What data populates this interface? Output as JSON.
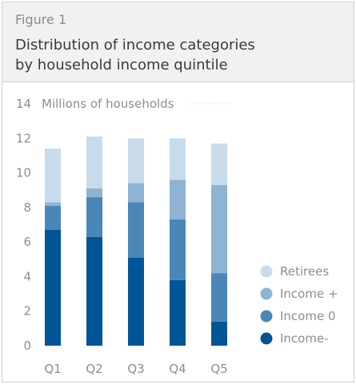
{
  "figure_label": "Figure 1",
  "title_line1": "Distribution of income categories",
  "title_line2": "by household income quintile",
  "chart_data": {
    "type": "bar",
    "stacked": true,
    "ylabel": "Millions of households",
    "ylim": [
      0,
      14
    ],
    "yticks": [
      0,
      2,
      4,
      6,
      8,
      10,
      12,
      14
    ],
    "categories": [
      "Q1",
      "Q2",
      "Q3",
      "Q4",
      "Q5"
    ],
    "series": [
      {
        "name": "Income-",
        "color": "#005596",
        "values": [
          6.7,
          6.3,
          5.1,
          3.8,
          1.4
        ]
      },
      {
        "name": "Income 0",
        "color": "#4a87b8",
        "values": [
          1.4,
          2.3,
          3.2,
          3.5,
          2.8
        ]
      },
      {
        "name": "Income +",
        "color": "#8eb3d3",
        "values": [
          0.2,
          0.5,
          1.1,
          2.3,
          5.1
        ]
      },
      {
        "name": "Retirees",
        "color": "#c8dbea",
        "values": [
          3.1,
          3.0,
          2.6,
          2.4,
          2.4
        ]
      }
    ],
    "legend_position": "right",
    "legend_order": [
      "Retirees",
      "Income +",
      "Income 0",
      "Income-"
    ]
  }
}
